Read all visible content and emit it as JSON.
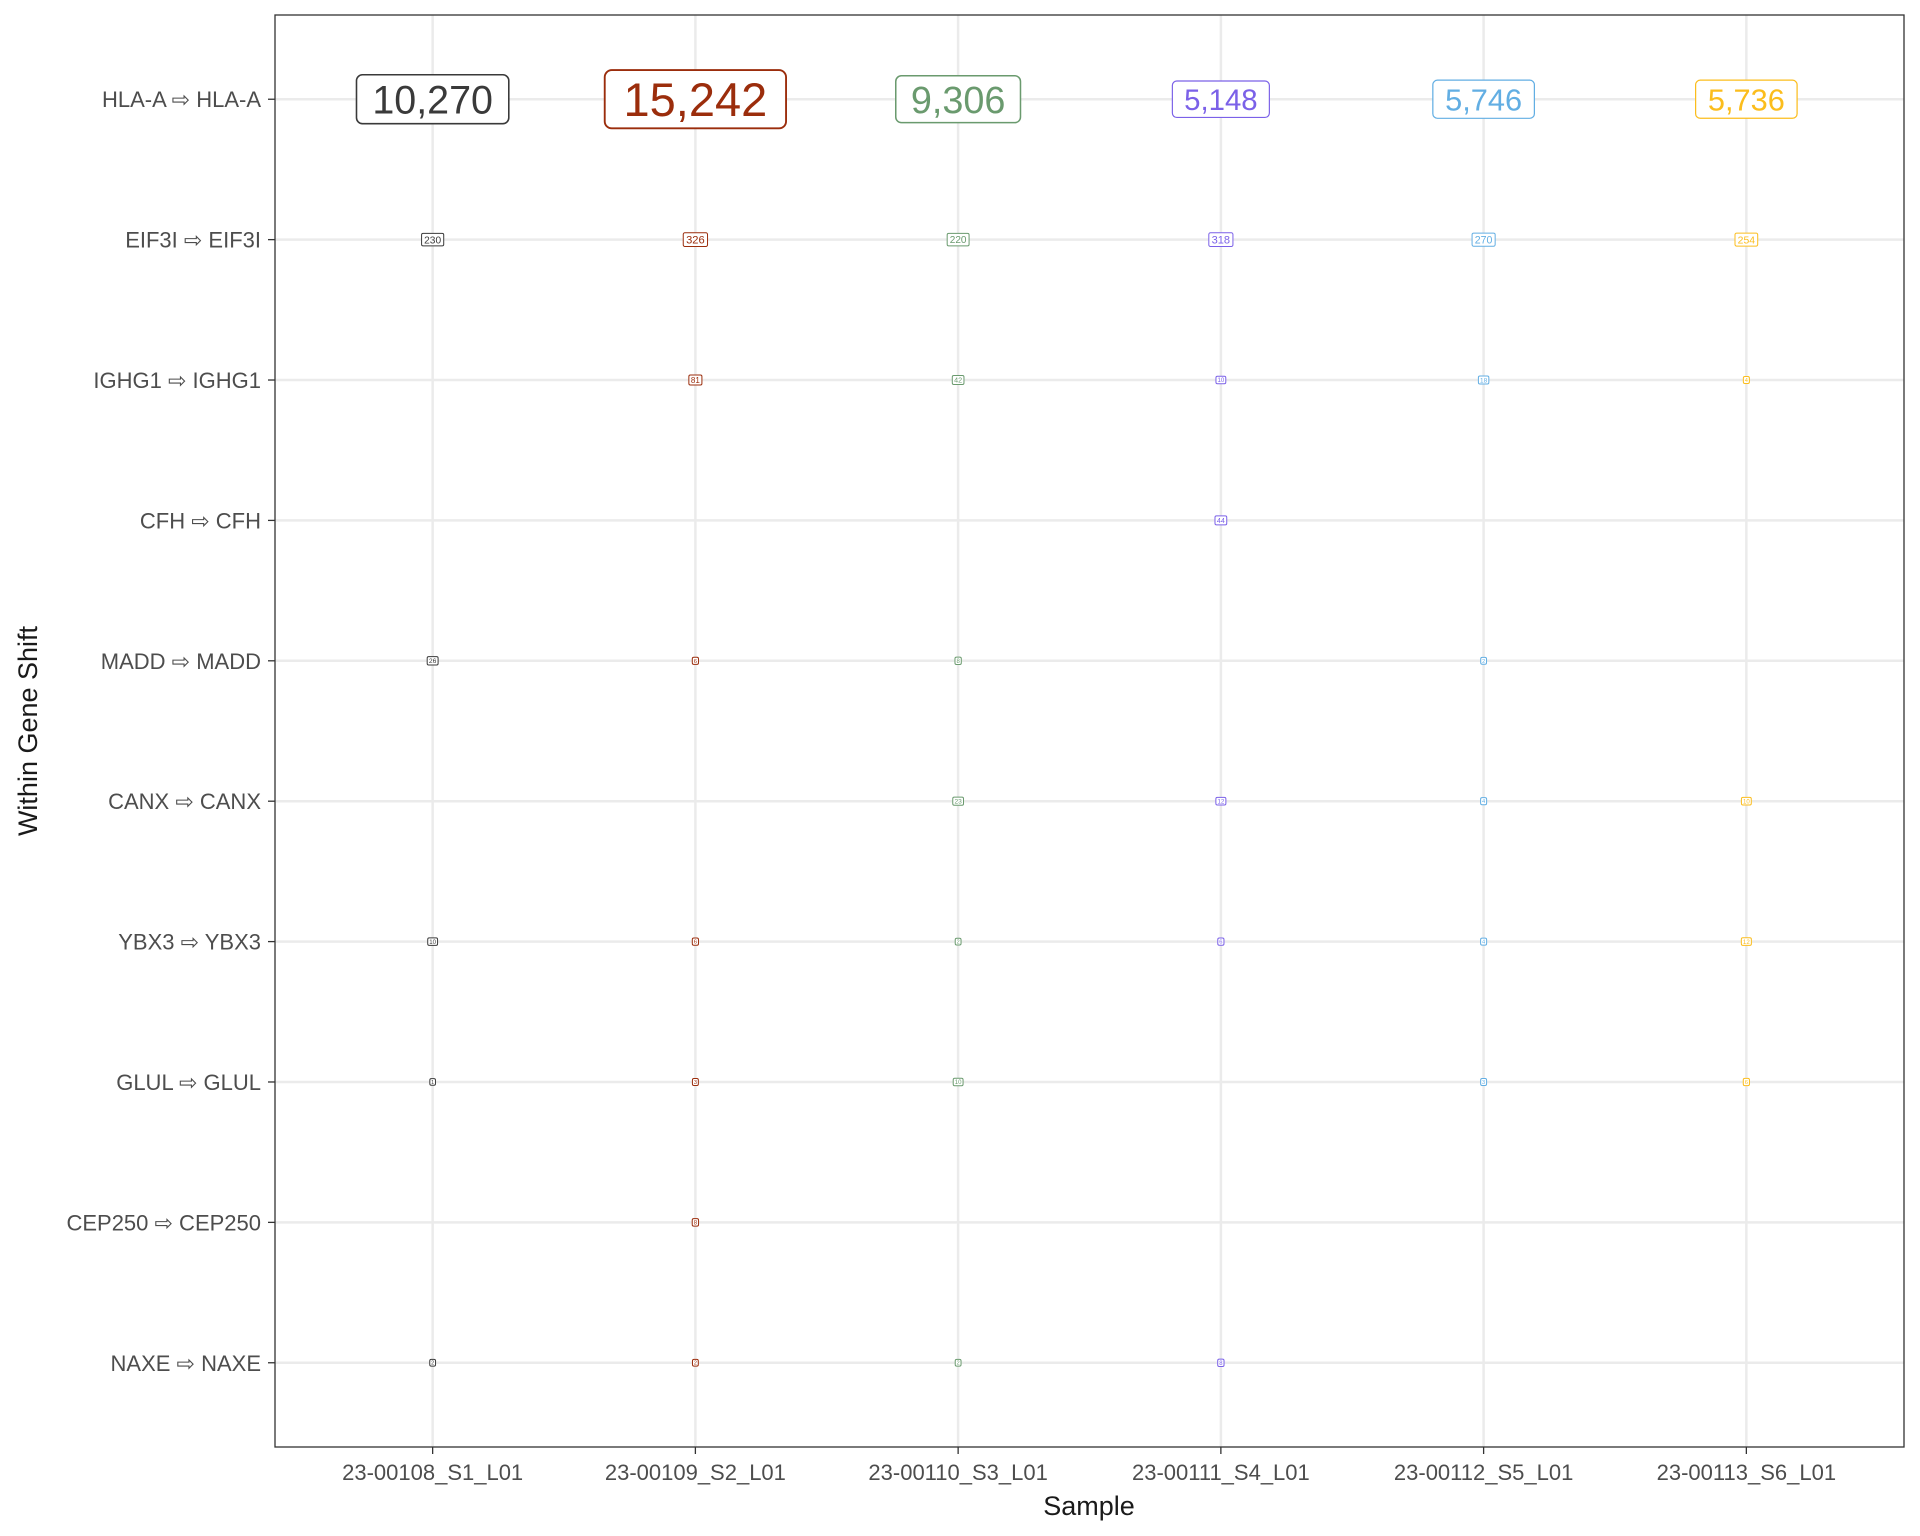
{
  "chart_data": {
    "type": "scatter",
    "title": "",
    "xlabel": "Sample",
    "ylabel": "Within Gene Shift",
    "grid": true,
    "legend": "none",
    "x_categories": [
      "23-00108_S1_L01",
      "23-00109_S2_L01",
      "23-00110_S3_L01",
      "23-00111_S4_L01",
      "23-00112_S5_L01",
      "23-00113_S6_L01"
    ],
    "y_categories": [
      "HLA-A ⇨ HLA-A",
      "EIF3I ⇨ EIF3I",
      "IGHG1 ⇨ IGHG1",
      "CFH ⇨ CFH",
      "MADD ⇨ MADD",
      "CANX ⇨ CANX",
      "YBX3 ⇨ YBX3",
      "GLUL ⇨ GLUL",
      "CEP250 ⇨ CEP250",
      "NAXE ⇨ NAXE"
    ],
    "sample_colors": [
      "#3a3a3a",
      "#9b2d0c",
      "#6a9a6e",
      "#7b61e8",
      "#62aee3",
      "#fbbd1d"
    ],
    "values": [
      [
        10270,
        15242,
        9306,
        5148,
        5746,
        5736
      ],
      [
        230,
        326,
        220,
        318,
        270,
        254
      ],
      [
        null,
        81,
        42,
        10,
        18,
        4
      ],
      [
        null,
        null,
        null,
        44,
        null,
        null
      ],
      [
        26,
        6,
        8,
        null,
        2,
        null
      ],
      [
        null,
        null,
        23,
        12,
        4,
        10
      ],
      [
        10,
        6,
        2,
        6,
        4,
        12
      ],
      [
        1,
        3,
        10,
        null,
        3,
        6
      ],
      [
        null,
        8,
        null,
        null,
        null,
        null
      ],
      [
        2,
        2,
        2,
        8,
        null,
        null
      ]
    ]
  }
}
